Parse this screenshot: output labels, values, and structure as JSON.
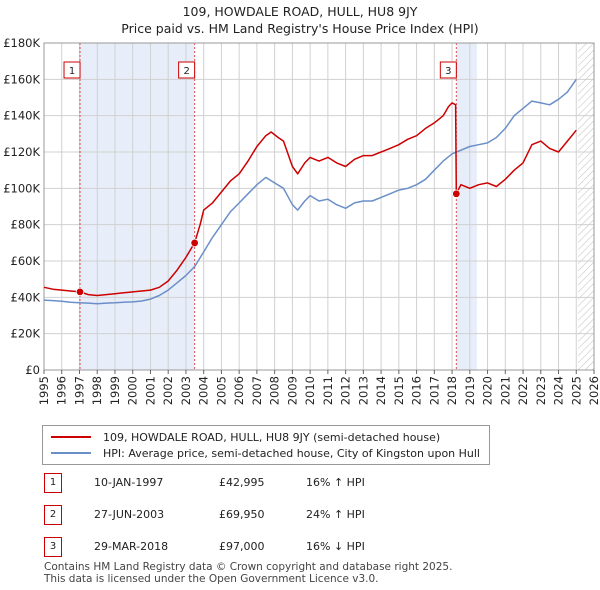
{
  "header": {
    "title": "109, HOWDALE ROAD, HULL, HU8 9JY",
    "subtitle": "Price paid vs. HM Land Registry's House Price Index (HPI)"
  },
  "colors": {
    "price_line": "#cc0000",
    "hpi_line": "#6a8fc8",
    "shade": "#e8eef9",
    "grid": "#d0d0d0",
    "marker_line": "#e05050"
  },
  "chart_data": {
    "type": "line",
    "title": "109, HOWDALE ROAD, HULL, HU8 9JY",
    "xlim": [
      1995,
      2026
    ],
    "ylim": [
      0,
      180000
    ],
    "x_ticks": [
      "1995",
      "1996",
      "1997",
      "1998",
      "1999",
      "2000",
      "2001",
      "2002",
      "2003",
      "2004",
      "2005",
      "2006",
      "2007",
      "2008",
      "2009",
      "2010",
      "2011",
      "2012",
      "2013",
      "2014",
      "2015",
      "2016",
      "2017",
      "2018",
      "2019",
      "2020",
      "2021",
      "2022",
      "2023",
      "2024",
      "2025",
      "2026"
    ],
    "y_ticks": [
      {
        "value": 0,
        "label": "£0"
      },
      {
        "value": 20000,
        "label": "£20K"
      },
      {
        "value": 40000,
        "label": "£40K"
      },
      {
        "value": 60000,
        "label": "£60K"
      },
      {
        "value": 80000,
        "label": "£80K"
      },
      {
        "value": 100000,
        "label": "£100K"
      },
      {
        "value": 120000,
        "label": "£120K"
      },
      {
        "value": 140000,
        "label": "£140K"
      },
      {
        "value": 160000,
        "label": "£160K"
      },
      {
        "value": 180000,
        "label": "£180K"
      }
    ],
    "shaded_ranges": [
      [
        1997.03,
        2003.49
      ],
      [
        2018.24,
        2019.4
      ]
    ],
    "future_hatch_from": 2025.1,
    "series": [
      {
        "name": "109, HOWDALE ROAD, HULL, HU8 9JY (semi-detached house)",
        "color": "#cc0000",
        "x": [
          1995.0,
          1995.5,
          1996.0,
          1996.5,
          1997.03,
          1997.5,
          1998.0,
          1998.5,
          1999.0,
          1999.5,
          2000.0,
          2000.5,
          2001.0,
          2001.5,
          2002.0,
          2002.5,
          2003.0,
          2003.49,
          2003.8,
          2004.0,
          2004.5,
          2005.0,
          2005.5,
          2006.0,
          2006.5,
          2007.0,
          2007.5,
          2007.8,
          2008.2,
          2008.5,
          2009.0,
          2009.3,
          2009.7,
          2010.0,
          2010.5,
          2011.0,
          2011.5,
          2012.0,
          2012.5,
          2013.0,
          2013.5,
          2014.0,
          2014.5,
          2015.0,
          2015.5,
          2016.0,
          2016.5,
          2017.0,
          2017.5,
          2017.8,
          2018.0,
          2018.2,
          2018.24,
          2018.5,
          2019.0,
          2019.5,
          2020.0,
          2020.5,
          2021.0,
          2021.5,
          2022.0,
          2022.5,
          2023.0,
          2023.5,
          2024.0,
          2024.5,
          2025.0
        ],
        "values": [
          45500,
          44500,
          44000,
          43500,
          42995,
          41500,
          41000,
          41500,
          42000,
          42500,
          43000,
          43500,
          44000,
          45500,
          49000,
          55000,
          62000,
          69950,
          80000,
          88000,
          92000,
          98000,
          104000,
          108000,
          115000,
          123000,
          129000,
          131000,
          128000,
          126000,
          112000,
          108000,
          114000,
          117000,
          115000,
          117000,
          114000,
          112000,
          116000,
          118000,
          118000,
          120000,
          122000,
          124000,
          127000,
          129000,
          133000,
          136000,
          140000,
          145000,
          147000,
          146000,
          97000,
          102000,
          100000,
          102000,
          103000,
          101000,
          105000,
          110000,
          114000,
          124000,
          126000,
          122000,
          120000,
          126000,
          132000
        ]
      },
      {
        "name": "HPI: Average price, semi-detached house, City of Kingston upon Hull",
        "color": "#6a8fc8",
        "x": [
          1995.0,
          1995.5,
          1996.0,
          1996.5,
          1997.0,
          1997.5,
          1998.0,
          1998.5,
          1999.0,
          1999.5,
          2000.0,
          2000.5,
          2001.0,
          2001.5,
          2002.0,
          2002.5,
          2003.0,
          2003.5,
          2004.0,
          2004.5,
          2005.0,
          2005.5,
          2006.0,
          2006.5,
          2007.0,
          2007.5,
          2008.0,
          2008.5,
          2009.0,
          2009.3,
          2009.7,
          2010.0,
          2010.5,
          2011.0,
          2011.5,
          2012.0,
          2012.5,
          2013.0,
          2013.5,
          2014.0,
          2014.5,
          2015.0,
          2015.5,
          2016.0,
          2016.5,
          2017.0,
          2017.5,
          2018.0,
          2018.5,
          2019.0,
          2019.5,
          2020.0,
          2020.5,
          2021.0,
          2021.5,
          2022.0,
          2022.5,
          2023.0,
          2023.5,
          2024.0,
          2024.5,
          2025.0
        ],
        "values": [
          38500,
          38200,
          37800,
          37300,
          37000,
          36800,
          36500,
          36800,
          37000,
          37300,
          37500,
          38000,
          39000,
          41000,
          44000,
          48000,
          52000,
          57000,
          65000,
          73000,
          80000,
          87000,
          92000,
          97000,
          102000,
          106000,
          103000,
          100000,
          91000,
          88000,
          93000,
          96000,
          93000,
          94000,
          91000,
          89000,
          92000,
          93000,
          93000,
          95000,
          97000,
          99000,
          100000,
          102000,
          105000,
          110000,
          115000,
          119000,
          121000,
          123000,
          124000,
          125000,
          128000,
          133000,
          140000,
          144000,
          148000,
          147000,
          146000,
          149000,
          153000,
          160000
        ]
      }
    ],
    "sales": [
      {
        "id": "1",
        "date": "10-JAN-1997",
        "x": 1997.03,
        "price": 42995,
        "price_label": "£42,995",
        "hpi": "16% ↑ HPI"
      },
      {
        "id": "2",
        "date": "27-JUN-2003",
        "x": 2003.49,
        "price": 69950,
        "price_label": "£69,950",
        "hpi": "24% ↑ HPI"
      },
      {
        "id": "3",
        "date": "29-MAR-2018",
        "x": 2018.24,
        "price": 97000,
        "price_label": "£97,000",
        "hpi": "16% ↓ HPI"
      }
    ]
  },
  "legend": {
    "price_label": "109, HOWDALE ROAD, HULL, HU8 9JY (semi-detached house)",
    "hpi_label": "HPI: Average price, semi-detached house, City of Kingston upon Hull"
  },
  "footer": {
    "line1": "Contains HM Land Registry data © Crown copyright and database right 2025.",
    "line2": "This data is licensed under the Open Government Licence v3.0."
  }
}
